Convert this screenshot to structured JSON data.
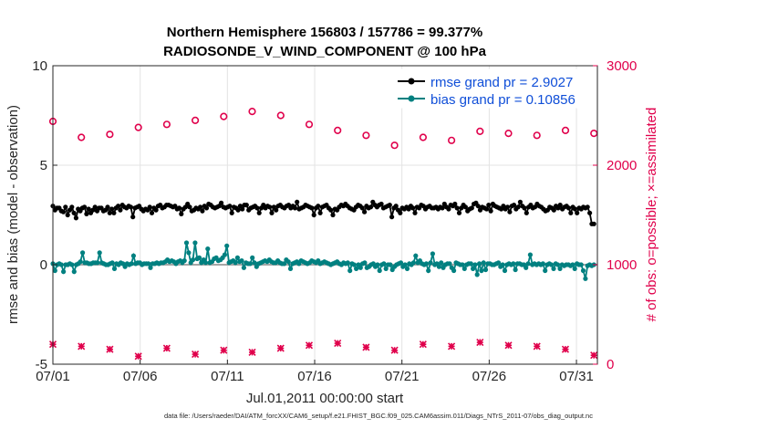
{
  "chart_data": {
    "type": "line",
    "title": [
      "Northern Hemisphere 156803 / 157786 = 99.377%",
      "RADIOSONDE_V_WIND_COMPONENT @ 100 hPa"
    ],
    "xlabel": "Jul.01,2011 00:00:00 start",
    "ylabel_left": "rmse and bias (model - observation)",
    "ylabel_right": "# of obs: o=possible; ×=assimilated",
    "footnote": "data file: /Users/raeder/DAI/ATM_forcXX/CAM6_setup/f.e21.FHIST_BGC.f09_025.CAM6assim.011/Diags_NTrS_2011-07/obs_diag_output.nc",
    "xlim": [
      0,
      31.2
    ],
    "ylim_left": [
      -5,
      10
    ],
    "ylim_right": [
      0,
      3000
    ],
    "x_ticks": [
      0,
      5,
      10,
      15,
      20,
      25,
      30
    ],
    "x_tick_labels": [
      "07/01",
      "07/06",
      "07/11",
      "07/16",
      "07/21",
      "07/26",
      "07/31"
    ],
    "y_ticks_left": [
      -5,
      0,
      5,
      10
    ],
    "y_tick_labels_left": [
      "-5",
      "0",
      "5",
      "10"
    ],
    "y_ticks_right": [
      0,
      1000,
      2000,
      3000
    ],
    "y_tick_labels_right": [
      "0",
      "1000",
      "2000",
      "3000"
    ],
    "grid": true,
    "legend_position": "top-right",
    "series": [
      {
        "name": "rmse grand pr = 2.9027",
        "color": "#000000",
        "axis": "left",
        "style": "line-dot",
        "values": [
          2.95,
          2.75,
          2.85,
          2.85,
          2.7,
          2.65,
          2.9,
          2.5,
          2.75,
          2.9,
          2.6,
          2.35,
          2.8,
          2.7,
          2.85,
          2.9,
          2.55,
          2.8,
          2.6,
          2.75,
          2.9,
          2.7,
          2.85,
          2.85,
          2.7,
          2.75,
          2.9,
          2.6,
          2.8,
          2.6,
          2.85,
          2.95,
          2.75,
          3.0,
          2.9,
          2.85,
          2.95,
          2.9,
          2.4,
          2.85,
          2.9,
          2.95,
          2.8,
          2.7,
          2.8,
          2.75,
          2.9,
          2.6,
          2.85,
          2.75,
          2.95,
          3.0,
          2.85,
          2.9,
          3.0,
          3.0,
          2.95,
          2.9,
          2.95,
          2.8,
          2.85,
          2.55,
          2.8,
          2.9,
          3.05,
          2.9,
          2.7,
          2.75,
          2.85,
          2.8,
          2.9,
          2.7,
          2.95,
          2.85,
          3.05,
          3.0,
          2.9,
          2.85,
          2.9,
          2.95,
          3.1,
          2.9,
          2.85,
          2.9,
          2.95,
          2.6,
          2.9,
          2.85,
          2.75,
          2.95,
          2.8,
          3.0,
          3.0,
          2.75,
          2.85,
          2.9,
          2.95,
          2.85,
          2.6,
          2.85,
          3.0,
          2.85,
          2.95,
          2.9,
          2.6,
          2.9,
          2.75,
          2.95,
          3.0,
          2.9,
          2.85,
          2.95,
          3.0,
          2.85,
          2.95,
          2.85,
          3.15,
          2.8,
          2.85,
          2.9,
          3.0,
          2.95,
          2.9,
          2.85,
          2.5,
          2.85,
          2.95,
          2.6,
          2.9,
          2.95,
          3.0,
          2.85,
          2.75,
          2.5,
          2.8,
          2.75,
          2.9,
          3.0,
          2.95,
          3.05,
          2.95,
          2.85,
          2.8,
          2.75,
          2.9,
          3.0,
          2.95,
          2.85,
          2.65,
          2.95,
          2.85,
          2.9,
          3.15,
          3.0,
          2.9,
          3.0,
          3.05,
          2.85,
          2.9,
          2.95,
          3.0,
          2.4,
          2.85,
          2.95,
          2.75,
          2.6,
          2.85,
          2.8,
          2.9,
          2.8,
          2.95,
          2.85,
          2.6,
          2.9,
          2.85,
          3.0,
          2.95,
          2.8,
          2.9,
          2.95,
          2.85,
          2.85,
          2.9,
          2.8,
          2.9,
          2.85,
          3.05,
          2.9,
          2.8,
          3.0,
          2.95,
          3.05,
          2.85,
          2.6,
          2.85,
          3.0,
          2.9,
          2.7,
          2.8,
          2.85,
          3.05,
          3.1,
          2.95,
          2.75,
          2.9,
          2.85,
          2.8,
          3.0,
          2.7,
          3.05,
          2.95,
          2.9,
          2.85,
          2.8,
          2.95,
          2.8,
          2.9,
          2.65,
          2.95,
          3.0,
          2.8,
          2.9,
          3.15,
          2.95,
          2.85,
          2.6,
          2.9,
          3.0,
          2.85,
          2.9,
          3.05,
          2.95,
          2.9,
          2.8,
          2.7,
          2.75,
          2.9,
          2.85,
          2.75,
          2.95,
          2.85,
          3.0,
          2.8,
          2.9,
          2.95,
          2.85,
          2.6,
          2.9,
          2.8,
          2.6,
          2.85,
          2.8,
          2.9,
          2.85,
          2.9,
          2.6,
          2.05,
          2.05
        ]
      },
      {
        "name": "bias grand pr = 0.10856",
        "color": "#008080",
        "axis": "left",
        "style": "line-dot",
        "values": [
          0.05,
          -0.3,
          0.0,
          0.05,
          0.0,
          -0.35,
          0.0,
          0.0,
          0.05,
          0.0,
          -0.35,
          0.0,
          0.05,
          0.15,
          0.6,
          0.1,
          0.1,
          0.05,
          0.05,
          0.1,
          0.1,
          0.1,
          0.6,
          0.1,
          0.05,
          0.0,
          0.0,
          0.05,
          0.1,
          -0.2,
          0.05,
          0.0,
          0.1,
          0.05,
          -0.1,
          0.05,
          0.0,
          0.05,
          0.45,
          0.05,
          0.1,
          0.1,
          0.0,
          0.05,
          0.05,
          0.05,
          -0.15,
          0.05,
          0.05,
          0.1,
          0.05,
          0.1,
          0.1,
          0.15,
          0.25,
          0.15,
          0.2,
          0.15,
          0.05,
          0.15,
          0.2,
          0.1,
          0.2,
          1.1,
          0.6,
          0.1,
          0.25,
          1.1,
          0.3,
          0.35,
          0.1,
          0.25,
          0.1,
          0.8,
          0.1,
          0.15,
          0.3,
          0.35,
          0.2,
          0.25,
          0.35,
          0.5,
          0.95,
          0.1,
          0.15,
          0.2,
          0.1,
          0.35,
          0.15,
          0.2,
          -0.15,
          0.1,
          0.05,
          0.05,
          0.35,
          0.1,
          -0.1,
          0.05,
          0.1,
          0.15,
          0.2,
          0.15,
          0.25,
          0.15,
          0.1,
          0.1,
          0.2,
          0.1,
          0.05,
          0.05,
          0.25,
          0.15,
          -0.2,
          0.05,
          0.1,
          0.15,
          0.05,
          0.2,
          0.15,
          0.1,
          0.05,
          0.1,
          0.2,
          0.15,
          0.1,
          0.2,
          0.05,
          0.1,
          0.15,
          0.1,
          0.05,
          0.0,
          0.05,
          0.1,
          0.15,
          0.05,
          0.0,
          0.1,
          0.05,
          0.1,
          -0.3,
          0.05,
          0.0,
          -0.2,
          0.0,
          -0.15,
          0.05,
          0.1,
          -0.15,
          -0.1,
          0.0,
          0.05,
          -0.1,
          0.0,
          -0.3,
          0.0,
          0.05,
          -0.2,
          0.0,
          0.0,
          -0.25,
          -0.1,
          0.0,
          0.05,
          0.1,
          -0.1,
          0.0,
          -0.2,
          0.05,
          0.0,
          0.1,
          0.45,
          0.1,
          0.2,
          0.05,
          0.0,
          0.05,
          -0.3,
          0.1,
          0.55,
          0.0,
          0.05,
          -0.1,
          0.1,
          -0.15,
          0.0,
          0.05,
          0.05,
          -0.15,
          -0.3,
          0.1,
          0.05,
          0.0,
          0.0,
          -0.2,
          0.0,
          0.05,
          0.05,
          -0.2,
          0.0,
          -0.5,
          0.05,
          -0.3,
          0.1,
          -0.25,
          0.05,
          0.05,
          0.0,
          0.0,
          0.05,
          0.1,
          -0.1,
          0.0,
          -0.3,
          0.0,
          0.05,
          0.0,
          0.05,
          -0.25,
          0.05,
          0.05,
          0.0,
          0.0,
          -0.15,
          0.05,
          0.5,
          0.0,
          0.05,
          0.0,
          0.05,
          0.0,
          0.05,
          -0.3,
          0.0,
          0.05,
          0.0,
          -0.2,
          0.05,
          0.0,
          -0.2,
          0.0,
          -0.05,
          0.0,
          0.0,
          -0.05,
          0.0,
          -0.2,
          0.05,
          0.0,
          0.0,
          -0.3,
          -0.7,
          -0.05,
          0.0,
          -0.05,
          0.0
        ]
      },
      {
        "name": "obs possible",
        "color": "#e0004b",
        "axis": "right",
        "style": "circle",
        "values": [
          2440,
          2280,
          2310,
          2380,
          2410,
          2450,
          2490,
          2540,
          2500,
          2410,
          2350,
          2300,
          2200,
          2280,
          2250,
          2340,
          2320,
          2300,
          2350,
          2320
        ]
      },
      {
        "name": "obs assimilated",
        "color": "#e0004b",
        "axis": "right",
        "style": "star",
        "values": [
          200,
          180,
          150,
          80,
          160,
          100,
          140,
          120,
          160,
          190,
          210,
          170,
          140,
          200,
          180,
          220,
          190,
          180,
          150,
          90
        ]
      }
    ],
    "legend": [
      {
        "label": "rmse grand pr = 2.9027",
        "color": "#000000"
      },
      {
        "label": "bias grand pr = 0.10856",
        "color": "#008080"
      }
    ]
  }
}
